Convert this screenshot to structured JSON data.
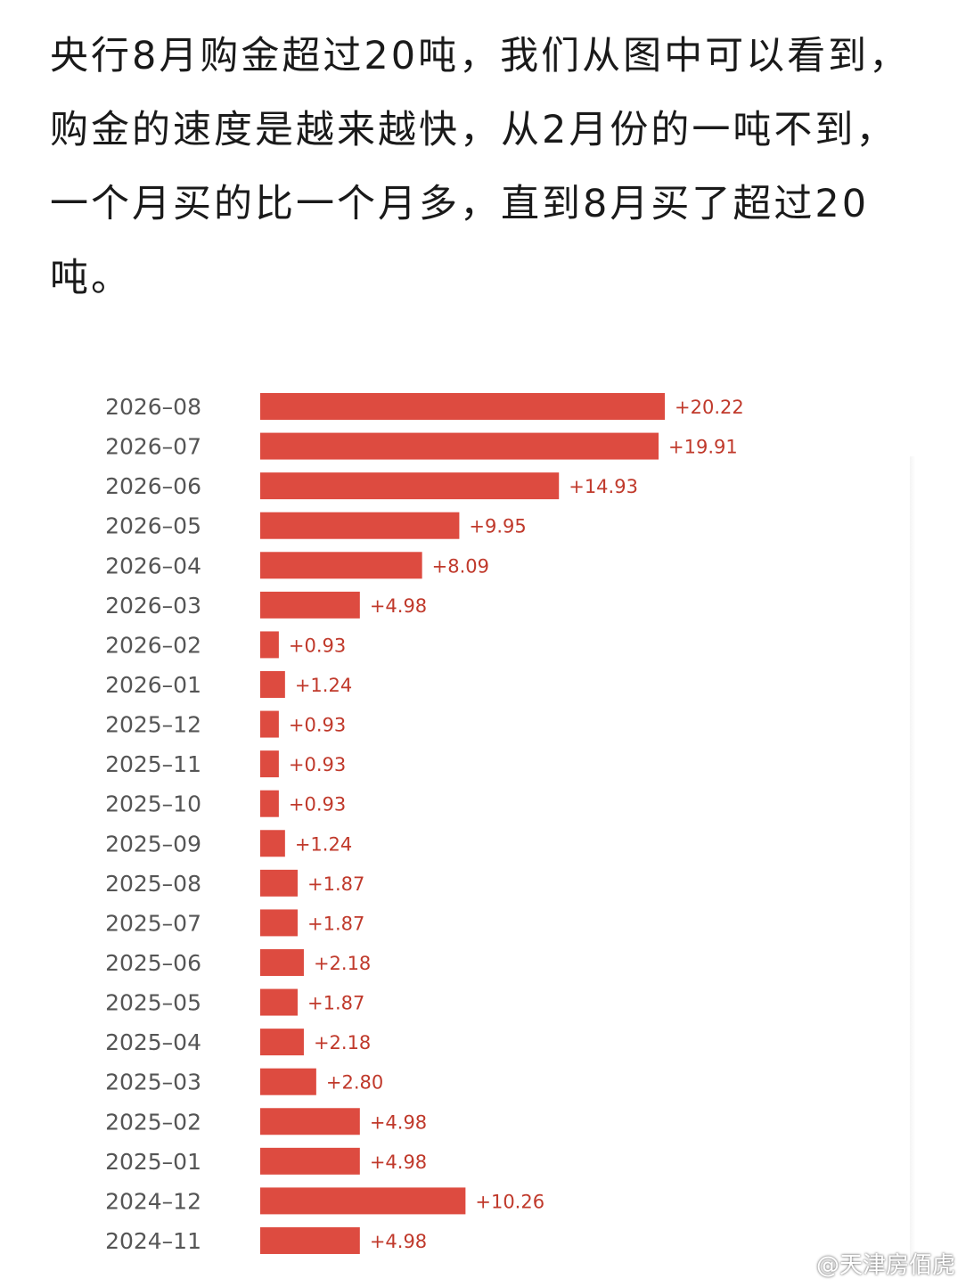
{
  "caption": "央行8月购金超过20吨，我们从图中可以看到，购金的速度是越来越快，从2月份的一吨不到，一个月买的比一个月多，直到8月买了超过20吨。",
  "watermark": {
    "text": "@天津房佰虎",
    "icon": "weibo-logo-icon"
  },
  "colors": {
    "bar": "#dd4b40",
    "value_label": "#c0392b",
    "category_label": "#555555"
  },
  "chart_data": {
    "type": "bar",
    "orientation": "horizontal",
    "title": "",
    "xlabel": "",
    "ylabel": "",
    "grid": false,
    "categories": [
      "2026-08",
      "2026-07",
      "2026-06",
      "2026-05",
      "2026-04",
      "2026-03",
      "2026-02",
      "2026-01",
      "2025-12",
      "2025-11",
      "2025-10",
      "2025-09",
      "2025-08",
      "2025-07",
      "2025-06",
      "2025-05",
      "2025-04",
      "2025-03",
      "2025-02",
      "2025-01",
      "2024-12",
      "2024-11"
    ],
    "values": [
      20.22,
      19.91,
      14.93,
      9.95,
      8.09,
      4.98,
      0.93,
      1.24,
      0.93,
      0.93,
      0.93,
      1.24,
      1.87,
      1.87,
      2.18,
      1.87,
      2.18,
      2.8,
      4.98,
      4.98,
      10.26,
      4.98
    ],
    "data_labels": [
      "+20.22",
      "+19.91",
      "+14.93",
      "+9.95",
      "+8.09",
      "+4.98",
      "+0.93",
      "+1.24",
      "+0.93",
      "+0.93",
      "+0.93",
      "+1.24",
      "+1.87",
      "+1.87",
      "+2.18",
      "+1.87",
      "+2.18",
      "+2.80",
      "+4.98",
      "+4.98",
      "+10.26",
      "+4.98"
    ],
    "category_labels": [
      "2026–08",
      "2026–07",
      "2026–06",
      "2026–05",
      "2026–04",
      "2026–03",
      "2026–02",
      "2026–01",
      "2025–12",
      "2025–11",
      "2025–10",
      "2025–09",
      "2025–08",
      "2025–07",
      "2025–06",
      "2025–05",
      "2025–04",
      "2025–03",
      "2025–02",
      "2025–01",
      "2024–12",
      "2024–11"
    ],
    "xlim": [
      0,
      20.22
    ]
  }
}
